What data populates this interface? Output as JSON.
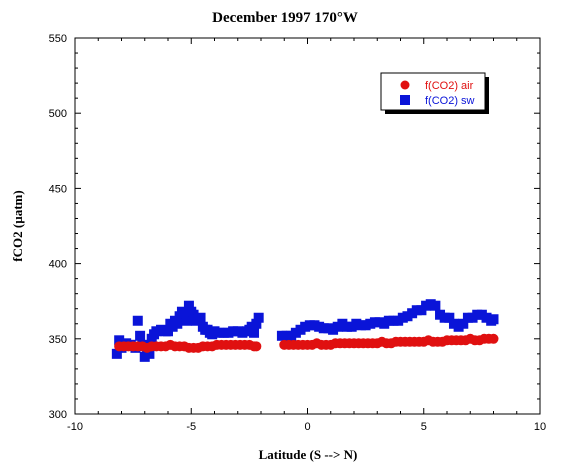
{
  "chart_data": {
    "type": "scatter",
    "title": "December 1997 170°W",
    "xlabel": "Latitude (S --> N)",
    "ylabel": "fCO2 (µatm)",
    "xlim": [
      -10,
      10
    ],
    "ylim": [
      300,
      550
    ],
    "xticks": [
      -10,
      -5,
      0,
      5,
      10
    ],
    "yticks": [
      300,
      350,
      400,
      450,
      500,
      550
    ],
    "legend_position": "top-right",
    "series": [
      {
        "name": "f(CO2) air",
        "marker": "circle",
        "color": "#e01010",
        "x": [
          -8.1,
          -7.9,
          -7.7,
          -7.5,
          -7.3,
          -7.1,
          -6.9,
          -6.7,
          -6.5,
          -6.3,
          -6.1,
          -5.9,
          -5.7,
          -5.5,
          -5.3,
          -5.1,
          -4.9,
          -4.7,
          -4.5,
          -4.3,
          -4.1,
          -3.9,
          -3.7,
          -3.5,
          -3.3,
          -3.1,
          -2.9,
          -2.7,
          -2.5,
          -2.3,
          -2.2,
          -1.0,
          -0.8,
          -0.6,
          -0.4,
          -0.2,
          0.0,
          0.2,
          0.4,
          0.6,
          0.8,
          1.0,
          1.2,
          1.4,
          1.6,
          1.8,
          2.0,
          2.2,
          2.4,
          2.6,
          2.8,
          3.0,
          3.2,
          3.4,
          3.6,
          3.8,
          4.0,
          4.2,
          4.4,
          4.6,
          4.8,
          5.0,
          5.2,
          5.4,
          5.6,
          5.8,
          6.0,
          6.2,
          6.4,
          6.6,
          6.8,
          7.0,
          7.2,
          7.4,
          7.6,
          7.8,
          8.0
        ],
        "y": [
          345,
          345,
          345,
          345,
          345,
          345,
          344,
          345,
          345,
          345,
          345,
          346,
          345,
          345,
          345,
          344,
          344,
          344,
          345,
          345,
          345,
          346,
          346,
          346,
          346,
          346,
          346,
          346,
          346,
          345,
          345,
          346,
          346,
          346,
          346,
          346,
          346,
          346,
          347,
          346,
          346,
          346,
          347,
          347,
          347,
          347,
          347,
          347,
          347,
          347,
          347,
          347,
          348,
          347,
          347,
          348,
          348,
          348,
          348,
          348,
          348,
          348,
          349,
          348,
          348,
          348,
          349,
          349,
          349,
          349,
          349,
          350,
          349,
          349,
          350,
          350,
          350
        ]
      },
      {
        "name": "f(CO2) sw",
        "marker": "square",
        "color": "#0a14d8",
        "x": [
          -8.2,
          -8.1,
          -8.0,
          -7.8,
          -7.6,
          -7.4,
          -7.3,
          -7.2,
          -7.1,
          -7.0,
          -6.9,
          -6.8,
          -6.7,
          -6.6,
          -6.5,
          -6.3,
          -6.1,
          -6.0,
          -5.9,
          -5.8,
          -5.7,
          -5.6,
          -5.5,
          -5.4,
          -5.3,
          -5.2,
          -5.1,
          -5.0,
          -4.9,
          -4.8,
          -4.7,
          -4.6,
          -4.5,
          -4.4,
          -4.3,
          -4.2,
          -4.1,
          -4.0,
          -3.8,
          -3.6,
          -3.4,
          -3.2,
          -3.0,
          -2.8,
          -2.6,
          -2.5,
          -2.4,
          -2.3,
          -2.2,
          -2.1,
          -1.1,
          -0.9,
          -0.7,
          -0.5,
          -0.3,
          -0.1,
          0.1,
          0.3,
          0.5,
          0.7,
          0.9,
          1.1,
          1.3,
          1.5,
          1.7,
          1.9,
          2.1,
          2.3,
          2.5,
          2.7,
          2.9,
          3.1,
          3.3,
          3.5,
          3.7,
          3.9,
          4.1,
          4.3,
          4.5,
          4.7,
          4.9,
          5.1,
          5.3,
          5.5,
          5.7,
          5.9,
          6.1,
          6.3,
          6.5,
          6.7,
          6.9,
          7.1,
          7.3,
          7.5,
          7.7,
          7.9,
          8.0
        ],
        "y": [
          340,
          349,
          344,
          347,
          346,
          344,
          362,
          352,
          346,
          338,
          344,
          340,
          350,
          353,
          355,
          356,
          355,
          355,
          360,
          358,
          362,
          360,
          365,
          368,
          367,
          362,
          372,
          368,
          366,
          362,
          363,
          364,
          358,
          356,
          356,
          354,
          353,
          355,
          354,
          354,
          354,
          355,
          355,
          354,
          355,
          356,
          358,
          354,
          360,
          364,
          352,
          352,
          352,
          354,
          356,
          358,
          359,
          359,
          358,
          357,
          357,
          356,
          358,
          360,
          358,
          358,
          360,
          359,
          359,
          360,
          361,
          361,
          360,
          362,
          362,
          362,
          364,
          365,
          367,
          369,
          369,
          372,
          373,
          372,
          366,
          364,
          364,
          360,
          358,
          360,
          364,
          364,
          366,
          366,
          364,
          362,
          363
        ]
      }
    ]
  }
}
